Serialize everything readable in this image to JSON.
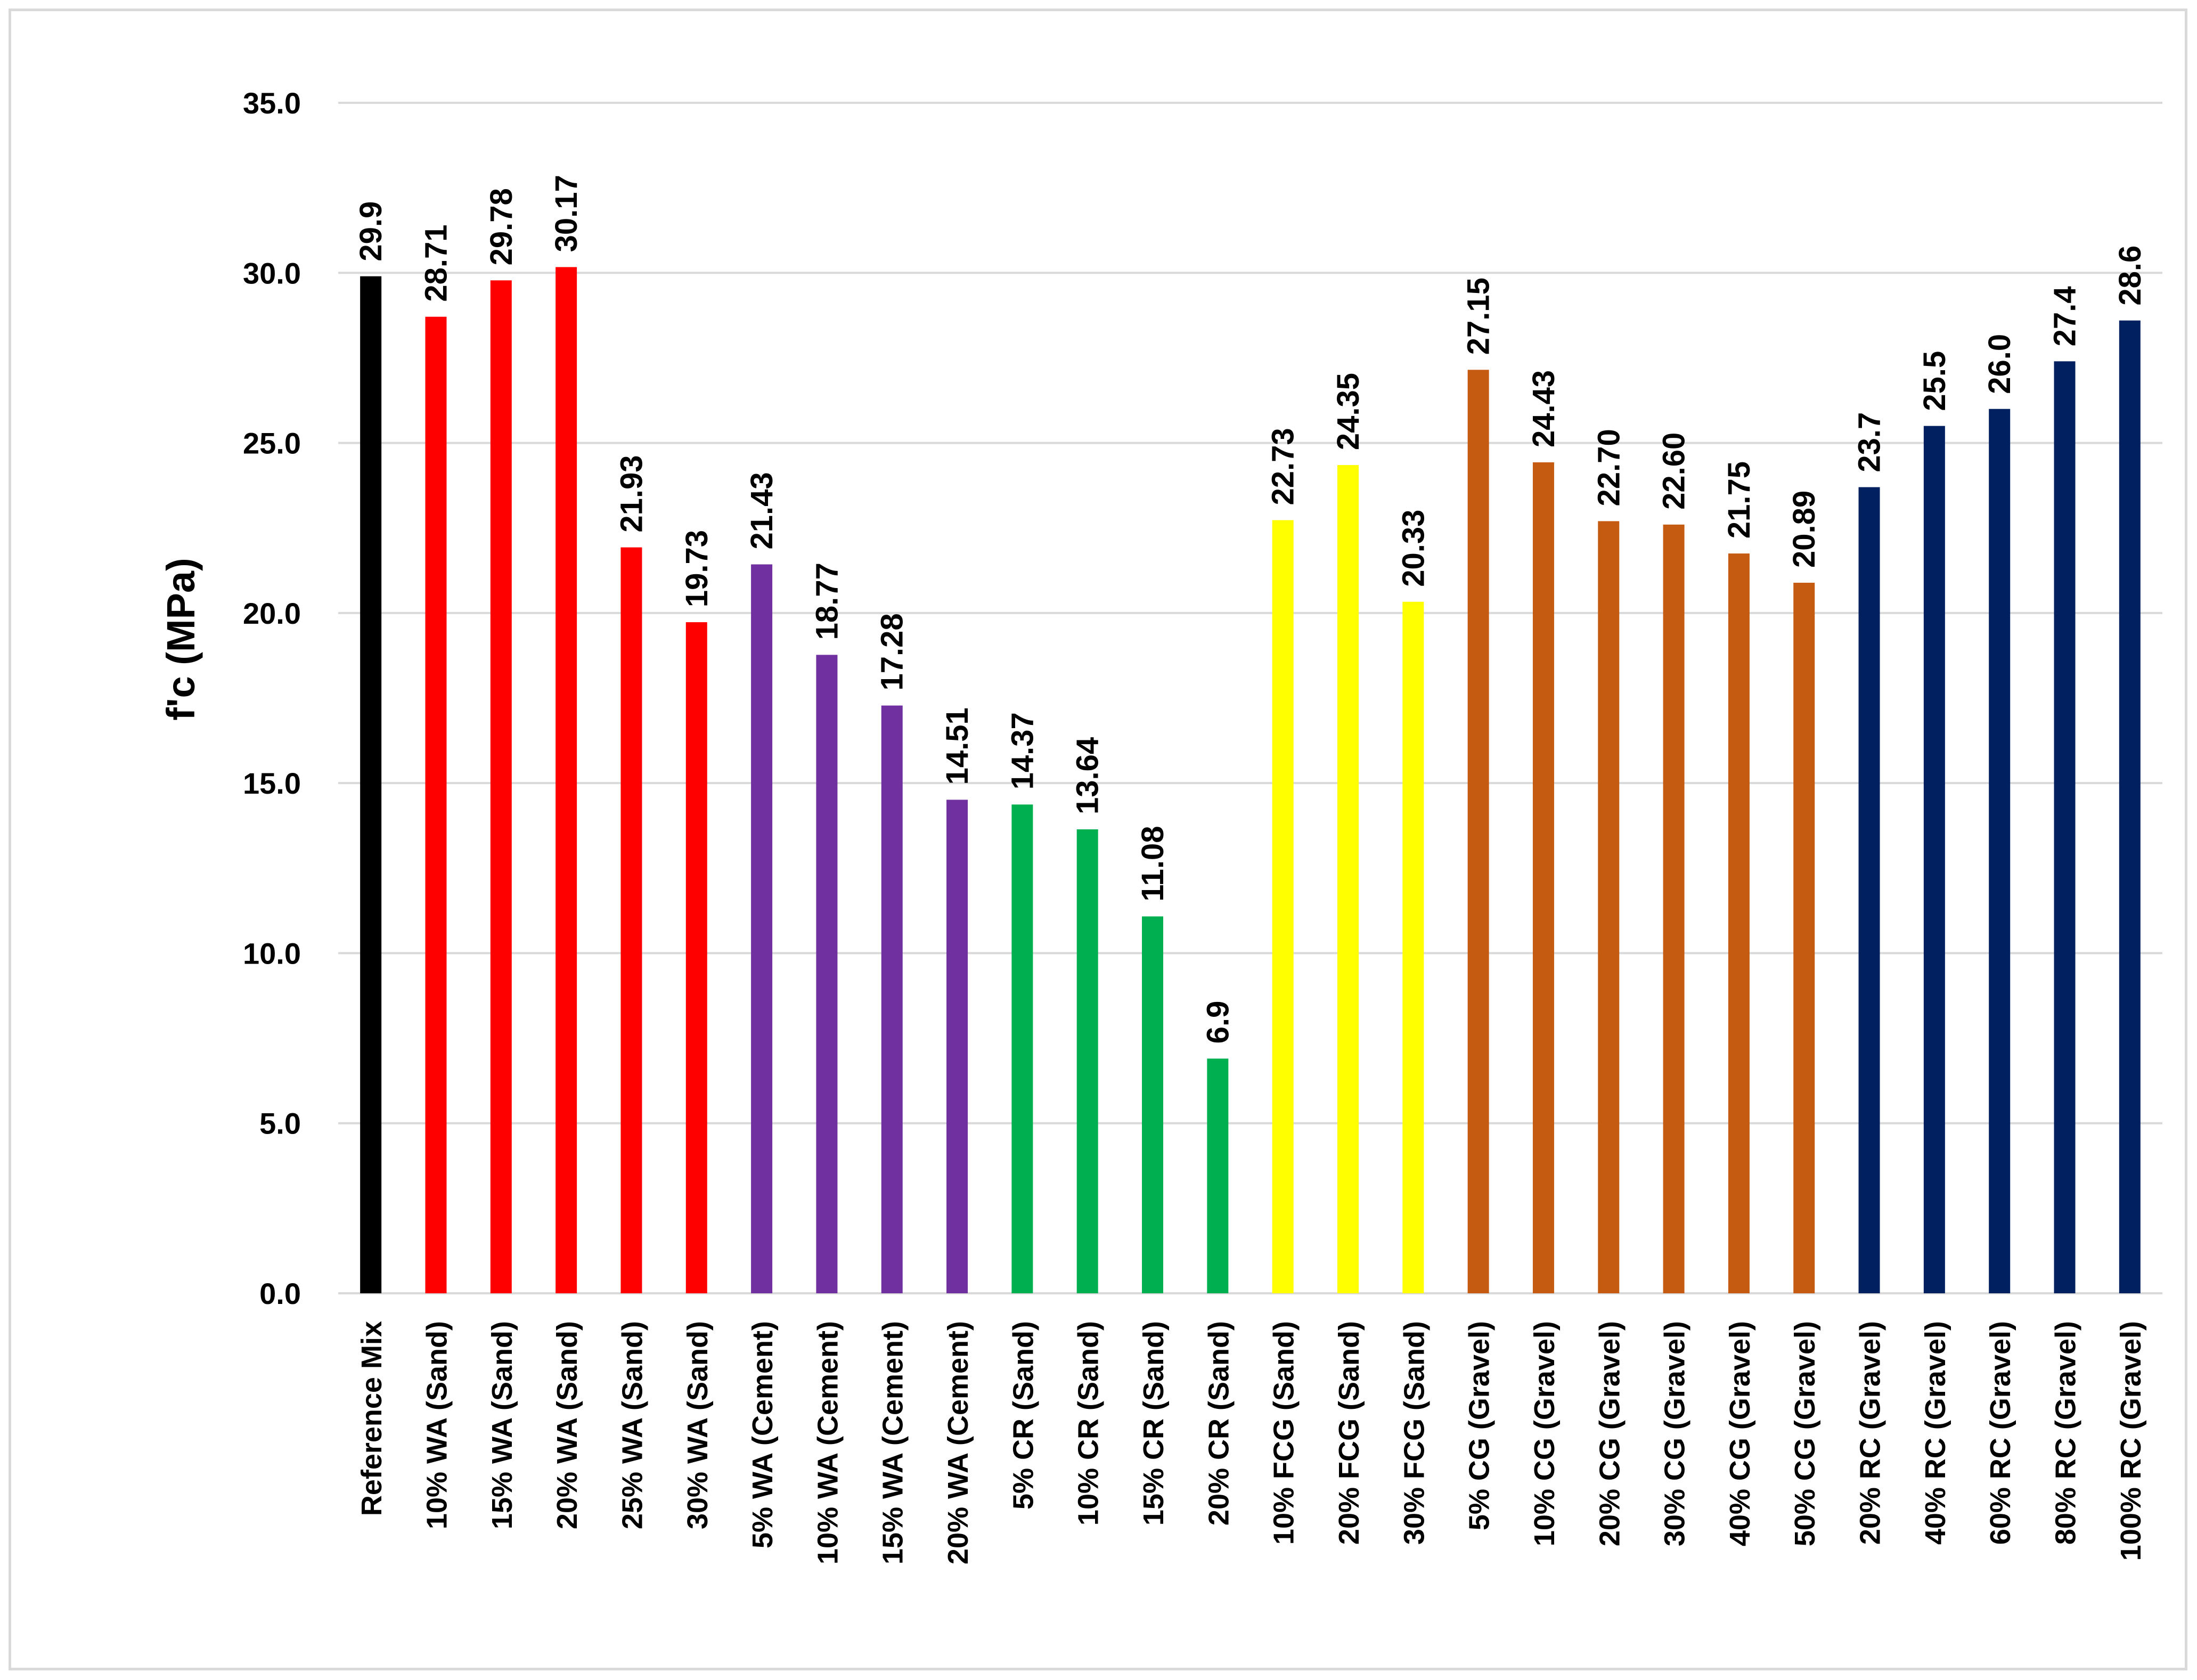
{
  "chart_data": {
    "type": "bar",
    "title": "",
    "xlabel": "",
    "ylabel": "f'c (MPa)",
    "ylim": [
      0,
      35
    ],
    "yticks": [
      0,
      5,
      10,
      15,
      20,
      25,
      30,
      35
    ],
    "ytick_labels": [
      "0.0",
      "5.0",
      "10.0",
      "15.0",
      "20.0",
      "25.0",
      "30.0",
      "35.0"
    ],
    "grid": true,
    "categories": [
      "Reference Mix",
      "10% WA (Sand)",
      "15% WA (Sand)",
      "20% WA (Sand)",
      "25% WA (Sand)",
      "30% WA (Sand)",
      "5% WA (Cement)",
      "10% WA (Cement)",
      "15% WA (Cement)",
      "20% WA (Cement)",
      "5% CR (Sand)",
      "10% CR (Sand)",
      "15% CR (Sand)",
      "20% CR (Sand)",
      "10% FCG (Sand)",
      "20% FCG (Sand)",
      "30% FCG (Sand)",
      "5% CG (Gravel)",
      "10% CG (Gravel)",
      "20% CG (Gravel)",
      "30% CG (Gravel)",
      "40% CG (Gravel)",
      "50% CG (Gravel)",
      "20% RC (Gravel)",
      "40% RC (Gravel)",
      "60% RC (Gravel)",
      "80% RC (Gravel)",
      "100% RC (Gravel)"
    ],
    "values": [
      29.9,
      28.71,
      29.78,
      30.17,
      21.93,
      19.73,
      21.43,
      18.77,
      17.28,
      14.51,
      14.37,
      13.64,
      11.08,
      6.9,
      22.73,
      24.35,
      20.33,
      27.15,
      24.43,
      22.7,
      22.6,
      21.75,
      20.89,
      23.7,
      25.5,
      26.0,
      27.4,
      28.6
    ],
    "value_labels": [
      "29.9",
      "28.71",
      "29.78",
      "30.17",
      "21.93",
      "19.73",
      "21.43",
      "18.77",
      "17.28",
      "14.51",
      "14.37",
      "13.64",
      "11.08",
      "6.9",
      "22.73",
      "24.35",
      "20.33",
      "27.15",
      "24.43",
      "22.70",
      "22.60",
      "21.75",
      "20.89",
      "23.7",
      "25.5",
      "26.0",
      "27.4",
      "28.6"
    ],
    "bar_colors": [
      "#000000",
      "#ff0000",
      "#ff0000",
      "#ff0000",
      "#ff0000",
      "#ff0000",
      "#7030a0",
      "#7030a0",
      "#7030a0",
      "#7030a0",
      "#00b050",
      "#00b050",
      "#00b050",
      "#00b050",
      "#ffff00",
      "#ffff00",
      "#ffff00",
      "#c55a11",
      "#c55a11",
      "#c55a11",
      "#c55a11",
      "#c55a11",
      "#c55a11",
      "#002060",
      "#002060",
      "#002060",
      "#002060",
      "#002060"
    ],
    "gridline_color": "#d9d9d9"
  }
}
